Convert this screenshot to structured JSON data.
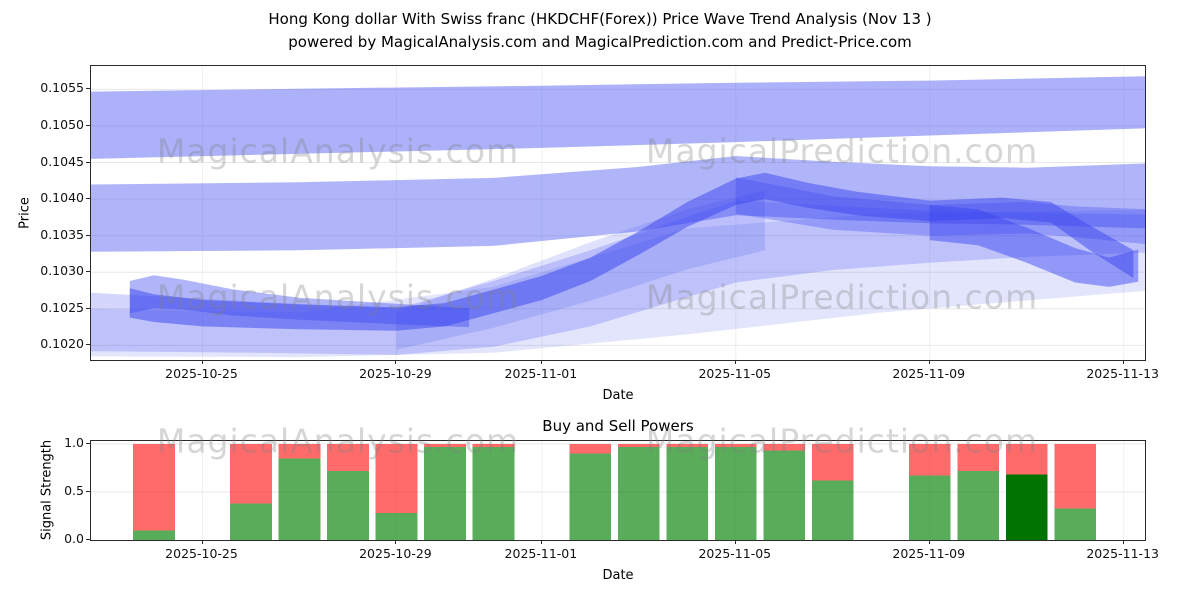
{
  "title": {
    "line1": "Hong Kong dollar With Swiss franc (HKDCHF(Forex)) Price Wave Trend Analysis (Nov 13 )",
    "line2": "powered by MagicalAnalysis.com and MagicalPrediction.com and Predict-Price.com"
  },
  "watermarks": {
    "analysis": "MagicalAnalysis.com",
    "prediction": "MagicalPrediction.com"
  },
  "price_chart": {
    "ylabel": "Price",
    "xlabel": "Date"
  },
  "power_chart": {
    "title": "Buy and Sell Powers",
    "ylabel": "Signal Strength",
    "xlabel": "Date"
  },
  "chart_data": [
    {
      "type": "area",
      "name": "price_wave_trend_fan",
      "title": "Hong Kong dollar With Swiss franc (HKDCHF(Forex)) Price Wave Trend Analysis",
      "xlabel": "Date",
      "ylabel": "Price",
      "x_unit": "days_since_2025-10-23",
      "x_domain": [
        -0.3,
        21.44
      ],
      "y_domain": [
        0.1018,
        0.10582
      ],
      "grid": true,
      "band_color": "#3a46f0",
      "y_tick_values": [
        0.102,
        0.1025,
        0.103,
        0.1035,
        0.104,
        0.1045,
        0.105,
        0.1055
      ],
      "x_ticks": [
        {
          "day": 2,
          "label": "2025-10-25"
        },
        {
          "day": 6,
          "label": "2025-10-29"
        },
        {
          "day": 9,
          "label": "2025-11-01"
        },
        {
          "day": 13,
          "label": "2025-11-05"
        },
        {
          "day": 17,
          "label": "2025-11-09"
        },
        {
          "day": 21,
          "label": "2025-11-13"
        }
      ],
      "bands": [
        {
          "name": "upper-trend-band",
          "opacity": 0.42,
          "x": [
            -0.3,
            4,
            9,
            13,
            17,
            21.5
          ],
          "lo": [
            0.10455,
            0.10462,
            0.1047,
            0.10478,
            0.10487,
            0.10497
          ],
          "hi": [
            0.10547,
            0.10551,
            0.10555,
            0.10559,
            0.10562,
            0.10568
          ]
        },
        {
          "name": "mid-trend-band",
          "opacity": 0.4,
          "x": [
            -0.3,
            4,
            8,
            11,
            13,
            15,
            17,
            19,
            21.5
          ],
          "lo": [
            0.10328,
            0.1033,
            0.10336,
            0.10356,
            0.10378,
            0.10372,
            0.10367,
            0.10365,
            0.1036
          ],
          "hi": [
            0.1042,
            0.10423,
            0.10429,
            0.10444,
            0.10459,
            0.10451,
            0.10445,
            0.10443,
            0.10449
          ]
        },
        {
          "name": "core-wave-band",
          "opacity": 0.5,
          "x": [
            0.5,
            1,
            2,
            4,
            6,
            7,
            8,
            9,
            10,
            11,
            12,
            13,
            13.6,
            14.5,
            15.5,
            17,
            18.5,
            19.5,
            20.3,
            21.2
          ],
          "lo": [
            0.10238,
            0.10232,
            0.10226,
            0.10222,
            0.1022,
            0.10226,
            0.10244,
            0.10262,
            0.10288,
            0.10324,
            0.10362,
            0.10392,
            0.104,
            0.10388,
            0.10378,
            0.1037,
            0.10374,
            0.10368,
            0.1033,
            0.10292
          ],
          "hi": [
            0.10278,
            0.1027,
            0.10262,
            0.10256,
            0.10252,
            0.10258,
            0.10276,
            0.10295,
            0.1032,
            0.10356,
            0.10396,
            0.10428,
            0.10436,
            0.10422,
            0.1041,
            0.10398,
            0.10402,
            0.10396,
            0.10364,
            0.1033
          ]
        },
        {
          "name": "post-peak-band",
          "opacity": 0.32,
          "x": [
            13,
            15,
            17,
            19,
            20,
            21.5
          ],
          "lo": [
            0.1038,
            0.10358,
            0.1035,
            0.10353,
            0.10348,
            0.10338
          ],
          "hi": [
            0.1043,
            0.10404,
            0.10392,
            0.10396,
            0.1039,
            0.10386
          ]
        },
        {
          "name": "lower-envelope-band",
          "opacity": 0.22,
          "x": [
            -0.3,
            3,
            6,
            8,
            10,
            12,
            13,
            15,
            17,
            19,
            21.5
          ],
          "lo": [
            0.10192,
            0.1019,
            0.10187,
            0.10198,
            0.10226,
            0.10266,
            0.10286,
            0.10303,
            0.10313,
            0.10321,
            0.10327
          ],
          "hi": [
            0.10272,
            0.1026,
            0.1025,
            0.10288,
            0.1033,
            0.10376,
            0.10398,
            0.10391,
            0.10384,
            0.10381,
            0.10379
          ]
        },
        {
          "name": "left-cluster-band",
          "opacity": 0.4,
          "x": [
            0.5,
            1,
            1.6,
            2.6,
            4,
            6,
            7.5
          ],
          "lo": [
            0.10244,
            0.10251,
            0.10249,
            0.10241,
            0.10235,
            0.10229,
            0.10225
          ],
          "hi": [
            0.10288,
            0.10296,
            0.1029,
            0.10277,
            0.10265,
            0.10257,
            0.10251
          ]
        },
        {
          "name": "rising-channel-band",
          "opacity": 0.16,
          "x": [
            6,
            8,
            10,
            12,
            13.6
          ],
          "lo": [
            0.10194,
            0.10224,
            0.10261,
            0.10304,
            0.1033
          ],
          "hi": [
            0.10246,
            0.10291,
            0.10341,
            0.10386,
            0.10412
          ]
        },
        {
          "name": "broad-fan-band",
          "opacity": 0.14,
          "x": [
            -0.3,
            4,
            8,
            12,
            16,
            21.5
          ],
          "lo": [
            0.10185,
            0.10184,
            0.1019,
            0.10215,
            0.10245,
            0.10275
          ],
          "hi": [
            0.1025,
            0.10245,
            0.1028,
            0.1036,
            0.1038,
            0.10385
          ]
        },
        {
          "name": "right-tail-band",
          "opacity": 0.48,
          "x": [
            17,
            18,
            19,
            20,
            20.7,
            21.3
          ],
          "lo": [
            0.10344,
            0.10337,
            0.10313,
            0.10286,
            0.1028,
            0.10287
          ],
          "hi": [
            0.10392,
            0.10386,
            0.10361,
            0.10333,
            0.1032,
            0.10331
          ]
        }
      ]
    },
    {
      "type": "bar",
      "name": "buy_sell_powers",
      "title": "Buy and Sell Powers",
      "xlabel": "Date",
      "ylabel": "Signal Strength",
      "stacked": true,
      "x_unit": "days_since_2025-10-23",
      "x_domain": [
        -0.3,
        21.44
      ],
      "y_domain": [
        0,
        1.03
      ],
      "y_ticks": [
        0.0,
        0.5,
        1.0
      ],
      "bar_width_days": 0.86,
      "colors": {
        "buy": "rgba(0,128,0,0.65)",
        "buy_dark": "rgba(0,115,0,1)",
        "sell": "rgba(255,0,0,0.58)"
      },
      "x_ticks": [
        {
          "day": 2,
          "label": "2025-10-25"
        },
        {
          "day": 6,
          "label": "2025-10-29"
        },
        {
          "day": 9,
          "label": "2025-11-01"
        },
        {
          "day": 13,
          "label": "2025-11-05"
        },
        {
          "day": 17,
          "label": "2025-11-09"
        },
        {
          "day": 21,
          "label": "2025-11-13"
        }
      ],
      "bars": [
        {
          "day": 1,
          "date": "2025-10-24",
          "buy": 0.1,
          "sell": 0.9
        },
        {
          "day": 3,
          "date": "2025-10-26",
          "buy": 0.38,
          "sell": 0.62
        },
        {
          "day": 4,
          "date": "2025-10-27",
          "buy": 0.85,
          "sell": 0.15
        },
        {
          "day": 5,
          "date": "2025-10-28",
          "buy": 0.72,
          "sell": 0.28
        },
        {
          "day": 6,
          "date": "2025-10-29",
          "buy": 0.28,
          "sell": 0.72
        },
        {
          "day": 7,
          "date": "2025-10-30",
          "buy": 0.97,
          "sell": 0.03
        },
        {
          "day": 8,
          "date": "2025-10-31",
          "buy": 0.97,
          "sell": 0.03
        },
        {
          "day": 10,
          "date": "2025-11-02",
          "buy": 0.9,
          "sell": 0.1
        },
        {
          "day": 11,
          "date": "2025-11-03",
          "buy": 0.97,
          "sell": 0.03
        },
        {
          "day": 12,
          "date": "2025-11-04",
          "buy": 0.97,
          "sell": 0.03
        },
        {
          "day": 13,
          "date": "2025-11-05",
          "buy": 0.97,
          "sell": 0.03
        },
        {
          "day": 14,
          "date": "2025-11-06",
          "buy": 0.93,
          "sell": 0.07
        },
        {
          "day": 15,
          "date": "2025-11-07",
          "buy": 0.62,
          "sell": 0.38
        },
        {
          "day": 17,
          "date": "2025-11-09",
          "buy": 0.67,
          "sell": 0.33
        },
        {
          "day": 18,
          "date": "2025-11-10",
          "buy": 0.72,
          "sell": 0.28
        },
        {
          "day": 19,
          "date": "2025-11-11",
          "buy": 0.68,
          "sell": 0.32,
          "dark": true
        },
        {
          "day": 20,
          "date": "2025-11-12",
          "buy": 0.33,
          "sell": 0.67
        }
      ]
    }
  ]
}
